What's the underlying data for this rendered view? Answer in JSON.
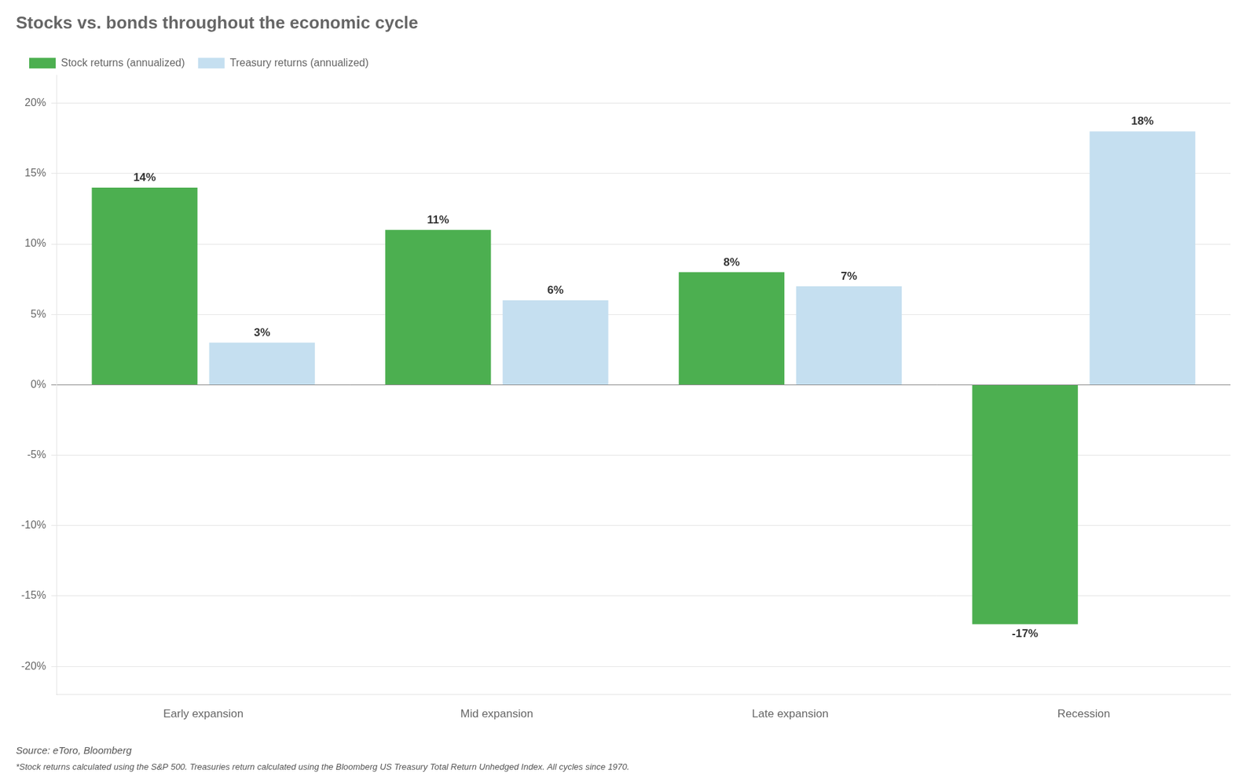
{
  "chart_data": {
    "type": "bar",
    "title": "Stocks vs. bonds throughout the economic cycle",
    "categories": [
      "Early expansion",
      "Mid expansion",
      "Late expansion",
      "Recession"
    ],
    "series": [
      {
        "name": "Stock returns (annualized)",
        "color": "#4caf50",
        "values": [
          14,
          11,
          8,
          -17
        ],
        "value_labels": [
          "14%",
          "11%",
          "8%",
          "-17%"
        ]
      },
      {
        "name": "Treasury returns (annualized)",
        "color": "#c5dff0",
        "values": [
          3,
          6,
          7,
          18
        ],
        "value_labels": [
          "3%",
          "6%",
          "7%",
          "18%"
        ]
      }
    ],
    "ylim": [
      -22,
      22
    ],
    "yticks": [
      {
        "value": -20,
        "label": "-20%"
      },
      {
        "value": -15,
        "label": "-15%"
      },
      {
        "value": -10,
        "label": "-10%"
      },
      {
        "value": -5,
        "label": "-5%"
      },
      {
        "value": 0,
        "label": "0%"
      },
      {
        "value": 5,
        "label": "5%"
      },
      {
        "value": 10,
        "label": "10%"
      },
      {
        "value": 15,
        "label": "15%"
      },
      {
        "value": 20,
        "label": "20%"
      }
    ],
    "grid": true,
    "legend": "top",
    "data_labels": true,
    "annotations": [
      "Source: eToro, Bloomberg",
      "*Stock returns calculated using the S&P 500. Treasuries return calculated using the Bloomberg US Treasury Total Return Unhedged Index. All cycles since 1970."
    ]
  }
}
